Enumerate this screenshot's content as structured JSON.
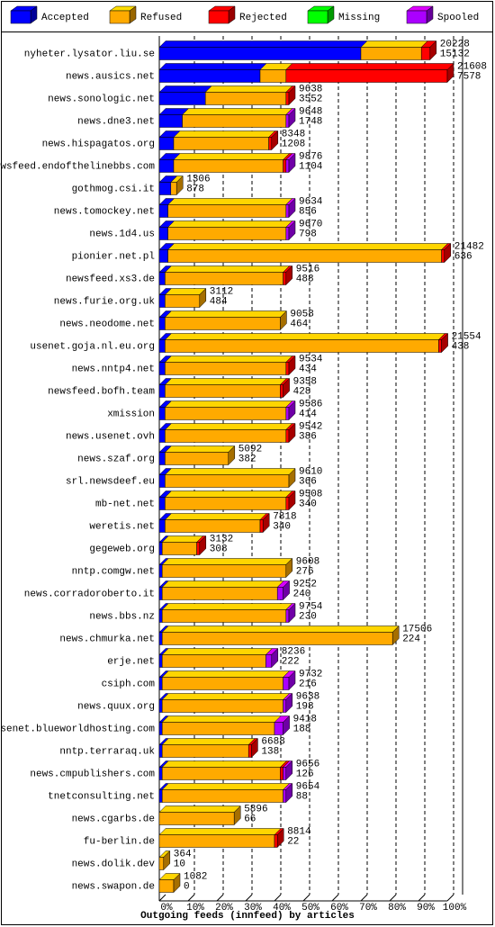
{
  "chart_data": {
    "type": "bar",
    "orientation": "horizontal",
    "stacked": true,
    "title": "Outgoing feeds (innfeed) by articles",
    "categories": [
      "nyheter.lysator.liu.se",
      "news.ausics.net",
      "news.sonologic.net",
      "news.dne3.net",
      "news.hispagatos.org",
      "newsfeed.endofthelinebbs.com",
      "gothmog.csi.it",
      "news.tomockey.net",
      "news.1d4.us",
      "pionier.net.pl",
      "newsfeed.xs3.de",
      "news.furie.org.uk",
      "news.neodome.net",
      "usenet.goja.nl.eu.org",
      "news.nntp4.net",
      "newsfeed.bofh.team",
      "xmission",
      "news.usenet.ovh",
      "news.szaf.org",
      "srl.newsdeef.eu",
      "mb-net.net",
      "weretis.net",
      "gegeweb.org",
      "nntp.comgw.net",
      "news.corradoroberto.it",
      "news.bbs.nz",
      "news.chmurka.net",
      "erje.net",
      "csiph.com",
      "news.quux.org",
      "usenet.blueworldhosting.com",
      "nntp.terraraq.uk",
      "news.cmpublishers.com",
      "tnetconsulting.net",
      "news.cgarbs.de",
      "fu-berlin.de",
      "news.dolik.dev",
      "news.swapon.de"
    ],
    "offered": [
      20228,
      21608,
      9638,
      9648,
      8348,
      9876,
      1306,
      9634,
      9670,
      21482,
      9516,
      3112,
      9058,
      21554,
      9534,
      9358,
      9586,
      9542,
      5092,
      9610,
      9508,
      7818,
      3132,
      9608,
      9252,
      9754,
      17506,
      8236,
      9732,
      9638,
      9418,
      6688,
      9656,
      9654,
      5896,
      8814,
      364,
      1082
    ],
    "accepted": [
      15132,
      7578,
      3552,
      1748,
      1208,
      1104,
      878,
      856,
      798,
      636,
      488,
      484,
      464,
      438,
      434,
      428,
      414,
      386,
      382,
      366,
      340,
      340,
      308,
      276,
      240,
      230,
      224,
      222,
      216,
      198,
      188,
      138,
      126,
      88,
      66,
      22,
      10,
      0
    ],
    "series": [
      {
        "name": "Accepted",
        "color": "#0000ff",
        "values": [
          70,
          35,
          16,
          8,
          5,
          5,
          4,
          3,
          3,
          3,
          2,
          2,
          2,
          2,
          2,
          2,
          2,
          2,
          2,
          2,
          2,
          2,
          1,
          1,
          1,
          1,
          1,
          1,
          1,
          1,
          1,
          1,
          1,
          1,
          0,
          0,
          0,
          0
        ]
      },
      {
        "name": "Refused",
        "color": "#ffaa00",
        "values": [
          21,
          9,
          28,
          36,
          33,
          38,
          2,
          41,
          41,
          95,
          41,
          12,
          40,
          95,
          42,
          40,
          42,
          42,
          22,
          43,
          42,
          33,
          12,
          43,
          40,
          43,
          80,
          36,
          42,
          42,
          39,
          30,
          41,
          42,
          26,
          40,
          1.5,
          5
        ]
      },
      {
        "name": "Rejected",
        "color": "#ff0000",
        "values": [
          3,
          56,
          1,
          0,
          1,
          1,
          0,
          0,
          0,
          1,
          1,
          0,
          0,
          1,
          1,
          1,
          0,
          1,
          0,
          0,
          1,
          1,
          1,
          0,
          0,
          0,
          0,
          0,
          0,
          0,
          0,
          1,
          1,
          0,
          0,
          1,
          0,
          0
        ]
      },
      {
        "name": "Missing",
        "color": "#00ff00",
        "values": [
          0,
          0,
          0,
          0,
          0,
          0,
          0,
          0,
          0,
          0,
          0,
          0,
          0,
          0,
          0,
          0,
          0,
          0,
          0,
          0,
          0,
          0,
          0,
          0,
          0,
          0,
          0,
          0,
          0,
          0,
          0,
          0,
          0,
          0,
          0,
          0,
          0,
          0
        ]
      },
      {
        "name": "Spooled",
        "color": "#aa00ff",
        "values": [
          0,
          0,
          0,
          1,
          0,
          1,
          0,
          1,
          1,
          0,
          0,
          0,
          0,
          0,
          0,
          0,
          1,
          0,
          0,
          0,
          0,
          0,
          0,
          0,
          2,
          1,
          0,
          2,
          2,
          1,
          3,
          0,
          1,
          1,
          0,
          0,
          0,
          0
        ]
      }
    ],
    "xlim": [
      0,
      100
    ],
    "xticks": [
      {
        "value": 0,
        "label": "0%"
      },
      {
        "value": 10,
        "label": "10%"
      },
      {
        "value": 20,
        "label": "20%"
      },
      {
        "value": 30,
        "label": "30%"
      },
      {
        "value": 40,
        "label": "40%"
      },
      {
        "value": 50,
        "label": "50%"
      },
      {
        "value": 60,
        "label": "60%"
      },
      {
        "value": 70,
        "label": "70%"
      },
      {
        "value": 80,
        "label": "80%"
      },
      {
        "value": 90,
        "label": "90%"
      },
      {
        "value": 100,
        "label": "100%"
      }
    ],
    "grid": true,
    "legend": "top"
  }
}
